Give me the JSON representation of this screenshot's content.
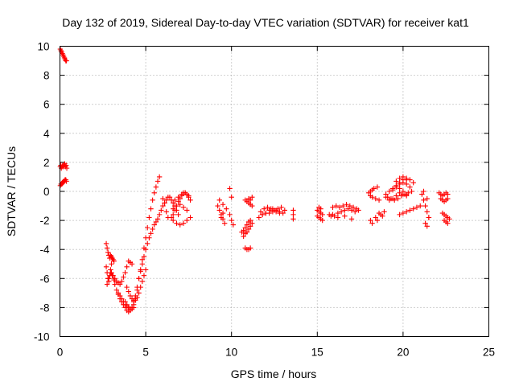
{
  "chart_data": {
    "type": "scatter",
    "title": "Day 132 of 2019, Sidereal Day-to-day VTEC variation (SDTVAR) for receiver kat1",
    "xlabel": "GPS time / hours",
    "ylabel": "SDTVAR / TECUs",
    "xlim": [
      0,
      25
    ],
    "ylim": [
      -10,
      10
    ],
    "x_ticks": [
      "0",
      "5",
      "10",
      "15",
      "20",
      "25"
    ],
    "y_ticks": [
      "-10",
      "-8",
      "-6",
      "-4",
      "-2",
      "0",
      "2",
      "4",
      "6",
      "8",
      "10"
    ],
    "grid": true,
    "marker": "plus",
    "color": "#ff0000",
    "series": [
      {
        "name": "SDTVAR",
        "x": [
          0.02,
          0.06,
          0.1,
          0.14,
          0.18,
          0.22,
          0.26,
          0.3,
          0.34,
          0.38,
          0.02,
          0.05,
          0.08,
          0.12,
          0.16,
          0.2,
          0.24,
          0.28,
          0.32,
          0.36,
          0.4,
          0.02,
          0.06,
          0.1,
          0.14,
          0.18,
          0.22,
          0.26,
          0.3,
          0.34,
          0.38,
          2.7,
          2.75,
          2.8,
          2.85,
          2.9,
          2.95,
          3.0,
          3.05,
          3.1,
          3.15,
          2.7,
          2.75,
          2.8,
          2.85,
          2.9,
          2.95,
          3.0,
          2.75,
          2.85,
          2.95,
          3.05,
          3.15,
          3.0,
          3.1,
          3.2,
          3.3,
          3.4,
          3.5,
          3.6,
          3.7,
          3.8,
          3.9,
          4.0,
          4.1,
          4.2,
          3.2,
          3.3,
          3.4,
          3.5,
          3.6,
          3.7,
          3.8,
          3.9,
          4.0,
          4.1,
          4.2,
          4.3,
          4.4,
          4.5,
          4.6,
          4.7,
          4.8,
          4.9,
          5.0,
          5.1,
          5.2,
          5.3,
          5.4,
          5.5,
          5.6,
          5.7,
          5.8,
          3.8,
          3.9,
          4.0,
          4.1,
          4.2,
          4.3,
          4.4,
          4.5,
          4.6,
          4.7,
          4.8,
          4.9,
          5.0,
          5.1,
          5.2,
          5.3,
          5.4,
          5.5,
          5.6,
          5.7,
          5.8,
          5.9,
          6.0,
          6.1,
          6.2,
          6.3,
          3.4,
          3.5,
          3.6,
          3.7,
          3.8,
          3.9,
          4.0,
          4.1,
          4.2,
          4.3,
          3.9,
          4.0,
          4.1,
          4.2,
          4.3,
          4.4,
          4.5,
          4.6,
          4.7,
          4.8,
          4.9,
          5.0,
          6.5,
          6.6,
          6.7,
          6.8,
          6.9,
          7.0,
          7.1,
          7.2,
          7.3,
          7.4,
          7.5,
          7.6,
          6.6,
          6.8,
          7.0,
          7.2,
          7.4,
          7.6,
          6.7,
          6.9,
          7.1,
          7.3,
          7.5,
          6.6,
          6.8,
          7.0,
          7.2,
          7.4,
          6.4,
          6.5,
          6.6,
          6.7,
          6.8,
          6.9,
          6.2,
          6.3,
          6.1,
          6.0,
          9.2,
          9.3,
          9.4,
          9.5,
          9.6,
          9.3,
          9.5,
          9.7,
          9.9,
          10.0,
          10.1,
          9.9,
          10.0,
          9.4,
          9.5,
          10.6,
          10.7,
          10.8,
          10.9,
          11.0,
          11.1,
          10.7,
          10.8,
          10.9,
          11.0,
          11.1,
          11.2,
          10.8,
          10.9,
          11.0,
          11.1,
          10.8,
          10.9,
          11.0,
          11.1,
          11.2,
          11.0,
          11.1,
          11.2,
          11.6,
          11.8,
          12.0,
          12.2,
          12.4,
          12.6,
          12.8,
          13.0,
          11.7,
          11.9,
          12.1,
          12.3,
          12.5,
          12.7,
          12.9,
          11.8,
          12.0,
          12.2,
          12.4,
          12.6,
          12.8,
          13.1,
          13.6,
          13.6,
          13.6,
          15.0,
          15.1,
          15.2,
          15.3,
          15.0,
          15.1,
          15.2,
          15.3,
          15.1,
          15.2,
          15.7,
          15.8,
          15.9,
          16.0,
          16.2,
          16.4,
          16.6,
          16.8,
          17.0,
          17.2,
          17.4,
          15.9,
          16.1,
          16.3,
          16.5,
          16.7,
          16.9,
          17.1,
          17.3,
          16.2,
          16.6,
          17.0,
          18.0,
          18.1,
          18.2,
          18.3,
          18.5,
          18.1,
          18.2,
          18.4,
          18.6,
          18.1,
          18.4,
          18.7,
          18.9,
          18.2,
          18.5,
          18.8,
          18.6,
          19.0,
          19.2,
          19.4,
          19.6,
          19.8,
          20.0,
          20.2,
          20.4,
          20.6,
          19.1,
          19.3,
          19.5,
          19.7,
          19.9,
          20.1,
          20.3,
          20.5,
          19.4,
          19.6,
          19.8,
          20.0,
          20.2,
          20.4,
          19.6,
          19.8,
          20.0,
          20.2,
          19.8,
          20.0,
          20.2,
          19.0,
          19.2,
          19.4,
          19.6,
          19.8,
          20.0,
          20.2,
          19.8,
          20.0,
          20.2,
          20.4,
          20.6,
          20.8,
          21.0,
          21.1,
          21.2,
          21.3,
          21.4,
          21.5,
          21.3,
          21.4,
          21.5,
          21.2,
          21.4,
          22.1,
          22.2,
          22.3,
          22.4,
          22.5,
          22.6,
          22.2,
          22.3,
          22.4,
          22.5,
          22.6,
          22.3,
          22.4,
          22.5,
          22.6,
          22.7,
          22.4,
          22.5,
          22.6
        ],
        "y": [
          9.8,
          9.7,
          9.6,
          9.5,
          9.4,
          9.3,
          9.2,
          9.1,
          9.0,
          9.0,
          1.7,
          1.8,
          1.6,
          1.7,
          1.8,
          1.7,
          1.8,
          1.9,
          1.7,
          1.8,
          1.6,
          0.4,
          0.5,
          0.5,
          0.6,
          0.6,
          0.7,
          0.7,
          0.8,
          0.8,
          0.7,
          -3.6,
          -3.9,
          -4.2,
          -4.4,
          -4.6,
          -4.4,
          -4.5,
          -4.6,
          -4.7,
          -4.8,
          -5.2,
          -5.6,
          -6.0,
          -6.2,
          -5.8,
          -5.4,
          -5.0,
          -6.4,
          -6.0,
          -5.6,
          -5.8,
          -6.1,
          -5.6,
          -5.8,
          -6.0,
          -6.2,
          -6.3,
          -6.4,
          -6.2,
          -5.9,
          -5.6,
          -5.2,
          -4.8,
          -4.9,
          -5.0,
          -6.4,
          -6.8,
          -7.1,
          -7.4,
          -7.6,
          -7.8,
          -8.0,
          -8.2,
          -8.3,
          -8.2,
          -8.0,
          -7.8,
          -7.4,
          -6.8,
          -6.0,
          -5.4,
          -4.7,
          -3.9,
          -3.2,
          -2.5,
          -1.8,
          -1.2,
          -0.6,
          -0.1,
          0.3,
          0.7,
          1.0,
          -7.6,
          -7.8,
          -8.0,
          -8.1,
          -8.0,
          -7.6,
          -7.2,
          -6.6,
          -6.0,
          -5.5,
          -5.0,
          -4.5,
          -4.0,
          -3.6,
          -3.2,
          -2.9,
          -2.6,
          -2.3,
          -2.1,
          -1.9,
          -1.6,
          -1.3,
          -1.0,
          -0.8,
          -0.6,
          -0.4,
          -7.0,
          -7.2,
          -7.4,
          -7.6,
          -7.8,
          -7.9,
          -8.0,
          -8.1,
          -8.1,
          -8.0,
          -6.6,
          -6.9,
          -7.2,
          -7.4,
          -7.5,
          -7.5,
          -7.3,
          -7.0,
          -6.6,
          -6.2,
          -5.8,
          -5.4,
          -1.8,
          -1.6,
          -1.3,
          -1.0,
          -0.7,
          -0.5,
          -0.3,
          -0.1,
          -0.1,
          -0.2,
          -0.4,
          -0.6,
          -2.0,
          -2.2,
          -2.3,
          -2.2,
          -2.0,
          -1.8,
          -0.6,
          -0.4,
          -0.2,
          -0.1,
          -0.3,
          -1.2,
          -1.0,
          -0.9,
          -1.1,
          -1.3,
          -0.4,
          -0.6,
          -0.8,
          -1.0,
          -1.3,
          -1.6,
          -1.4,
          -1.8,
          -0.8,
          -0.5,
          -1.0,
          -1.3,
          -1.6,
          -1.9,
          -2.2,
          -0.6,
          -0.9,
          -1.2,
          -1.6,
          -2.0,
          -2.3,
          0.2,
          -0.4,
          -1.8,
          -1.5,
          -2.8,
          -2.7,
          -2.5,
          -2.3,
          -2.1,
          -2.0,
          -3.1,
          -2.9,
          -2.8,
          -2.6,
          -2.4,
          -2.2,
          -3.9,
          -4.0,
          -4.0,
          -3.9,
          -0.6,
          -0.7,
          -0.8,
          -0.9,
          -1.0,
          -0.5,
          -0.6,
          -0.4,
          -1.8,
          -1.6,
          -1.5,
          -1.3,
          -1.2,
          -1.3,
          -1.4,
          -1.5,
          -1.4,
          -1.2,
          -1.1,
          -1.2,
          -1.3,
          -1.2,
          -1.1,
          -1.6,
          -1.5,
          -1.5,
          -1.4,
          -1.4,
          -1.5,
          -1.3,
          -1.3,
          -1.6,
          -1.9,
          -1.3,
          -1.4,
          -1.5,
          -1.6,
          -1.7,
          -1.8,
          -1.9,
          -2.0,
          -1.1,
          -1.2,
          -1.6,
          -1.7,
          -1.6,
          -1.7,
          -1.5,
          -1.4,
          -1.3,
          -1.2,
          -1.3,
          -1.4,
          -1.3,
          -1.1,
          -1.0,
          -1.1,
          -1.0,
          -0.9,
          -1.0,
          -1.1,
          -1.2,
          -1.8,
          -1.7,
          -1.9,
          -0.1,
          0.0,
          0.1,
          0.2,
          0.3,
          -0.3,
          -0.4,
          -0.5,
          -0.6,
          -2.0,
          -1.8,
          -1.6,
          -1.4,
          -2.2,
          -2.0,
          -1.7,
          -1.5,
          -0.2,
          0.0,
          0.2,
          0.4,
          0.6,
          0.8,
          0.9,
          0.8,
          0.6,
          -0.4,
          -0.5,
          -0.6,
          -0.5,
          -0.3,
          -0.2,
          -0.1,
          0.0,
          0.1,
          0.3,
          0.5,
          0.6,
          0.5,
          0.3,
          0.7,
          0.9,
          1.0,
          0.8,
          0.2,
          0.0,
          -0.2,
          -0.4,
          -0.6,
          -0.5,
          -0.3,
          -0.1,
          -0.2,
          -0.3,
          -1.6,
          -1.5,
          -1.4,
          -1.3,
          -1.2,
          -1.1,
          -1.0,
          -0.2,
          -0.6,
          -1.0,
          -1.4,
          -1.8,
          -2.2,
          -2.4,
          -1.8,
          0.0,
          -0.5,
          -0.1,
          -0.2,
          -0.3,
          -0.2,
          -0.1,
          -0.2,
          -0.5,
          -0.6,
          -0.7,
          -0.6,
          -0.5,
          -1.5,
          -1.6,
          -1.7,
          -1.8,
          -1.9,
          -2.0,
          -2.1,
          -2.2
        ]
      }
    ]
  }
}
